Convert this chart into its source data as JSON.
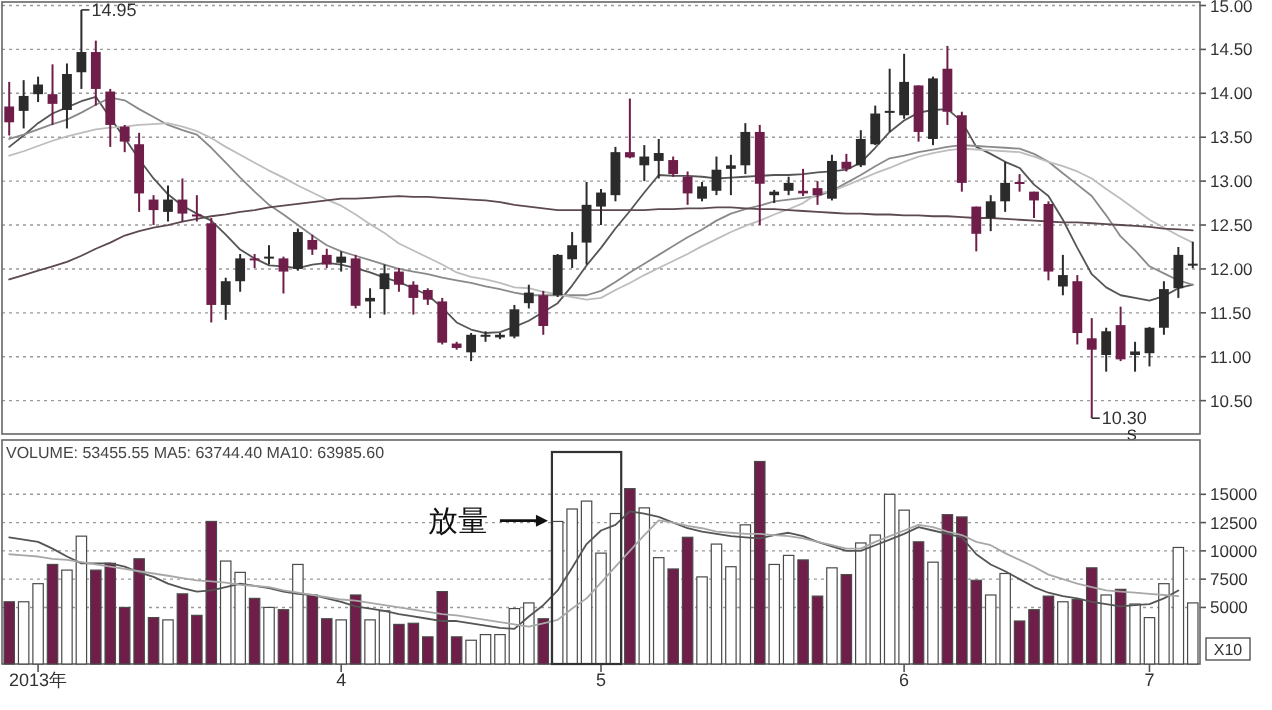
{
  "chart_data": [
    {
      "type": "candlestick",
      "categories": [
        null,
        null,
        null,
        null,
        null,
        null,
        null,
        null,
        null,
        null,
        null,
        null,
        null,
        null,
        null,
        null,
        null,
        null,
        null,
        null,
        null,
        null,
        null,
        null,
        null,
        null,
        null,
        null,
        null,
        null,
        null,
        null,
        null,
        null,
        null,
        null,
        null,
        null,
        null,
        null,
        null,
        null,
        null,
        null,
        null,
        null,
        null,
        null,
        null,
        null,
        null,
        null,
        null,
        null,
        null,
        null,
        null,
        null,
        null,
        null,
        null,
        null,
        null,
        null,
        null,
        null,
        null,
        null,
        null,
        null,
        null,
        null,
        null,
        null,
        null,
        null,
        null,
        null,
        null,
        null,
        null,
        null,
        null
      ],
      "ohlc": [
        [
          13.85,
          14.13,
          13.52,
          13.67
        ],
        [
          13.8,
          14.15,
          13.6,
          13.97
        ],
        [
          13.99,
          14.19,
          13.9,
          14.1
        ],
        [
          13.99,
          14.33,
          13.64,
          13.88
        ],
        [
          13.81,
          14.34,
          13.6,
          14.22
        ],
        [
          14.24,
          14.95,
          14.05,
          14.47
        ],
        [
          14.47,
          14.6,
          13.86,
          14.05
        ],
        [
          14.02,
          14.05,
          13.39,
          13.64
        ],
        [
          13.62,
          13.64,
          13.33,
          13.45
        ],
        [
          13.42,
          13.55,
          12.65,
          12.86
        ],
        [
          12.79,
          12.84,
          12.5,
          12.67
        ],
        [
          12.65,
          12.95,
          12.54,
          12.79
        ],
        [
          12.79,
          13.03,
          12.54,
          12.63
        ],
        [
          12.62,
          12.84,
          12.54,
          12.6
        ],
        [
          12.52,
          12.58,
          11.39,
          11.59
        ],
        [
          11.59,
          11.9,
          11.42,
          11.86
        ],
        [
          11.86,
          12.17,
          11.74,
          12.12
        ],
        [
          12.12,
          12.17,
          12.01,
          12.1
        ],
        [
          12.13,
          12.27,
          12.05,
          12.14
        ],
        [
          12.12,
          12.14,
          11.72,
          11.97
        ],
        [
          12.0,
          12.46,
          11.98,
          12.42
        ],
        [
          12.33,
          12.39,
          12.16,
          12.22
        ],
        [
          12.16,
          12.23,
          12.01,
          12.05
        ],
        [
          12.07,
          12.2,
          11.97,
          12.14
        ],
        [
          12.12,
          12.16,
          11.55,
          11.58
        ],
        [
          11.63,
          11.78,
          11.44,
          11.67
        ],
        [
          11.77,
          12.05,
          11.48,
          11.95
        ],
        [
          11.97,
          12.01,
          11.74,
          11.82
        ],
        [
          11.82,
          11.86,
          11.48,
          11.67
        ],
        [
          11.76,
          11.78,
          11.59,
          11.65
        ],
        [
          11.63,
          11.67,
          11.14,
          11.16
        ],
        [
          11.15,
          11.17,
          11.08,
          11.1
        ],
        [
          11.05,
          11.27,
          10.95,
          11.25
        ],
        [
          11.24,
          11.29,
          11.17,
          11.25
        ],
        [
          11.22,
          11.27,
          11.2,
          11.25
        ],
        [
          11.23,
          11.59,
          11.21,
          11.54
        ],
        [
          11.61,
          11.82,
          11.55,
          11.73
        ],
        [
          11.7,
          11.75,
          11.25,
          11.35
        ],
        [
          11.7,
          12.17,
          11.68,
          12.16
        ],
        [
          12.11,
          12.42,
          12.01,
          12.27
        ],
        [
          12.3,
          12.99,
          12.05,
          12.73
        ],
        [
          12.71,
          12.91,
          12.5,
          12.87
        ],
        [
          12.84,
          13.39,
          12.77,
          13.33
        ],
        [
          13.33,
          13.94,
          13.26,
          13.27
        ],
        [
          13.18,
          13.41,
          13.0,
          13.28
        ],
        [
          13.23,
          13.48,
          13.03,
          13.32
        ],
        [
          13.24,
          13.28,
          13.05,
          13.08
        ],
        [
          13.05,
          13.11,
          12.73,
          12.86
        ],
        [
          12.8,
          12.99,
          12.77,
          12.94
        ],
        [
          12.89,
          13.28,
          12.84,
          13.13
        ],
        [
          13.14,
          13.3,
          12.84,
          13.18
        ],
        [
          13.18,
          13.66,
          13.08,
          13.56
        ],
        [
          13.56,
          13.64,
          12.5,
          12.97
        ],
        [
          12.84,
          12.9,
          12.75,
          12.88
        ],
        [
          12.89,
          13.05,
          12.84,
          12.98
        ],
        [
          12.89,
          13.14,
          12.83,
          12.86
        ],
        [
          12.92,
          13.0,
          12.73,
          12.84
        ],
        [
          12.8,
          13.3,
          12.78,
          13.23
        ],
        [
          13.22,
          13.31,
          13.11,
          13.14
        ],
        [
          13.18,
          13.58,
          13.16,
          13.48
        ],
        [
          13.42,
          13.86,
          13.41,
          13.77
        ],
        [
          13.79,
          14.28,
          13.56,
          13.8
        ],
        [
          13.75,
          14.45,
          13.71,
          14.13
        ],
        [
          14.09,
          14.09,
          13.45,
          13.56
        ],
        [
          13.48,
          14.19,
          13.41,
          14.17
        ],
        [
          14.28,
          14.54,
          13.64,
          13.79
        ],
        [
          13.75,
          13.79,
          12.88,
          12.98
        ],
        [
          12.71,
          12.71,
          12.2,
          12.4
        ],
        [
          12.58,
          12.84,
          12.43,
          12.77
        ],
        [
          12.77,
          13.22,
          12.65,
          12.98
        ],
        [
          12.99,
          13.08,
          12.88,
          12.97
        ],
        [
          12.88,
          12.88,
          12.58,
          12.78
        ],
        [
          12.74,
          12.77,
          11.87,
          11.97
        ],
        [
          11.8,
          12.16,
          11.7,
          11.93
        ],
        [
          11.86,
          11.93,
          11.14,
          11.27
        ],
        [
          11.21,
          11.44,
          10.3,
          11.08
        ],
        [
          11.02,
          11.33,
          10.83,
          11.29
        ],
        [
          11.36,
          11.57,
          10.95,
          10.97
        ],
        [
          11.02,
          11.17,
          10.83,
          11.06
        ],
        [
          11.04,
          11.34,
          10.89,
          11.33
        ],
        [
          11.33,
          11.86,
          11.25,
          11.77
        ],
        [
          11.78,
          12.25,
          11.67,
          12.16
        ],
        [
          12.04,
          12.31,
          12.01,
          12.06
        ]
      ],
      "colors": [
        "#6e1e48",
        "#2b2b2b",
        "#2b2b2b",
        "#6e1e48",
        "#2b2b2b",
        "#2b2b2b",
        "#6e1e48",
        "#6e1e48",
        "#6e1e48",
        "#6e1e48",
        "#6e1e48",
        "#2b2b2b",
        "#6e1e48",
        "#6e1e48",
        "#6e1e48",
        "#2b2b2b",
        "#2b2b2b",
        "#6e1e48",
        "#2b2b2b",
        "#6e1e48",
        "#2b2b2b",
        "#6e1e48",
        "#6e1e48",
        "#2b2b2b",
        "#6e1e48",
        "#2b2b2b",
        "#2b2b2b",
        "#6e1e48",
        "#6e1e48",
        "#6e1e48",
        "#6e1e48",
        "#6e1e48",
        "#2b2b2b",
        "#2b2b2b",
        "#2b2b2b",
        "#2b2b2b",
        "#2b2b2b",
        "#6e1e48",
        "#2b2b2b",
        "#2b2b2b",
        "#2b2b2b",
        "#2b2b2b",
        "#2b2b2b",
        "#6e1e48",
        "#2b2b2b",
        "#2b2b2b",
        "#6e1e48",
        "#6e1e48",
        "#2b2b2b",
        "#2b2b2b",
        "#2b2b2b",
        "#2b2b2b",
        "#6e1e48",
        "#2b2b2b",
        "#2b2b2b",
        "#6e1e48",
        "#6e1e48",
        "#2b2b2b",
        "#6e1e48",
        "#2b2b2b",
        "#2b2b2b",
        "#2b2b2b",
        "#2b2b2b",
        "#6e1e48",
        "#2b2b2b",
        "#6e1e48",
        "#6e1e48",
        "#6e1e48",
        "#2b2b2b",
        "#2b2b2b",
        "#6e1e48",
        "#6e1e48",
        "#6e1e48",
        "#2b2b2b",
        "#6e1e48",
        "#6e1e48",
        "#2b2b2b",
        "#6e1e48",
        "#2b2b2b",
        "#2b2b2b",
        "#2b2b2b",
        "#2b2b2b",
        "#2b2b2b"
      ],
      "series": [
        {
          "type": "line",
          "color": "#555555",
          "values": [
            13.39,
            13.52,
            13.66,
            13.77,
            13.84,
            13.91,
            13.96,
            13.72,
            13.49,
            13.25,
            13.03,
            12.85,
            12.72,
            12.63,
            12.55,
            12.39,
            12.22,
            12.12,
            12.04,
            12.03,
            12.01,
            12.05,
            12.07,
            12.05,
            12.01,
            11.96,
            11.9,
            11.85,
            11.78,
            11.7,
            11.56,
            11.39,
            11.31,
            11.27,
            11.28,
            11.34,
            11.41,
            11.51,
            11.61,
            11.81,
            12.04,
            12.24,
            12.46,
            12.66,
            12.87,
            13.07,
            13.06,
            13.06,
            13.05,
            13.03,
            13.04,
            13.05,
            13.06,
            13.07,
            13.07,
            13.08,
            13.1,
            13.11,
            13.13,
            13.21,
            13.38,
            13.56,
            13.69,
            13.78,
            13.81,
            13.82,
            13.68,
            13.39,
            13.31,
            13.22,
            13.15,
            12.96,
            12.83,
            12.56,
            12.24,
            11.94,
            11.79,
            11.7,
            11.67,
            11.64,
            11.69,
            11.78,
            11.82
          ]
        },
        {
          "type": "line",
          "color": "#8a8a8a",
          "values": [
            13.48,
            13.53,
            13.59,
            13.65,
            13.7,
            13.78,
            13.87,
            13.95,
            13.92,
            13.82,
            13.73,
            13.64,
            13.58,
            13.53,
            13.38,
            13.21,
            13.04,
            12.88,
            12.73,
            12.62,
            12.5,
            12.38,
            12.27,
            12.2,
            12.15,
            12.1,
            12.05,
            12.0,
            11.97,
            11.94,
            11.9,
            11.87,
            11.84,
            11.8,
            11.77,
            11.73,
            11.7,
            11.7,
            11.7,
            11.7,
            11.7,
            11.75,
            11.85,
            11.96,
            12.06,
            12.16,
            12.26,
            12.36,
            12.45,
            12.55,
            12.63,
            12.68,
            12.72,
            12.77,
            12.79,
            12.81,
            12.83,
            12.89,
            12.98,
            13.07,
            13.17,
            13.26,
            13.29,
            13.33,
            13.36,
            13.39,
            13.41,
            13.4,
            13.39,
            13.38,
            13.37,
            13.31,
            13.22,
            13.09,
            12.96,
            12.83,
            12.61,
            12.37,
            12.21,
            12.03,
            11.95,
            11.87,
            11.82
          ]
        },
        {
          "type": "line",
          "color": "#bdbdbd",
          "values": [
            13.29,
            13.34,
            13.4,
            13.46,
            13.51,
            13.55,
            13.59,
            13.61,
            13.62,
            13.64,
            13.65,
            13.66,
            13.62,
            13.57,
            13.49,
            13.39,
            13.3,
            13.21,
            13.12,
            13.04,
            12.95,
            12.87,
            12.79,
            12.72,
            12.62,
            12.51,
            12.41,
            12.29,
            12.21,
            12.13,
            12.05,
            11.96,
            11.91,
            11.88,
            11.84,
            11.79,
            11.78,
            11.74,
            11.71,
            11.68,
            11.65,
            11.67,
            11.76,
            11.84,
            11.93,
            12.01,
            12.09,
            12.17,
            12.26,
            12.34,
            12.42,
            12.49,
            12.55,
            12.62,
            12.68,
            12.75,
            12.86,
            12.89,
            12.95,
            13.02,
            13.09,
            13.15,
            13.22,
            13.28,
            13.32,
            13.35,
            13.37,
            13.36,
            13.35,
            13.34,
            13.33,
            13.28,
            13.22,
            13.17,
            13.11,
            13.03,
            12.91,
            12.8,
            12.68,
            12.56,
            12.47,
            12.38,
            12.3
          ]
        },
        {
          "type": "line",
          "color": "#5c4a4f",
          "values": [
            11.88,
            11.93,
            11.98,
            12.03,
            12.08,
            12.15,
            12.23,
            12.3,
            12.38,
            12.43,
            12.47,
            12.5,
            12.54,
            12.57,
            12.6,
            12.62,
            12.65,
            12.67,
            12.7,
            12.72,
            12.74,
            12.76,
            12.78,
            12.8,
            12.8,
            12.81,
            12.82,
            12.83,
            12.82,
            12.82,
            12.81,
            12.8,
            12.79,
            12.78,
            12.76,
            12.73,
            12.71,
            12.69,
            12.67,
            12.67,
            12.67,
            12.67,
            12.67,
            12.67,
            12.67,
            12.68,
            12.68,
            12.69,
            12.69,
            12.7,
            12.7,
            12.69,
            12.68,
            12.68,
            12.67,
            12.66,
            12.65,
            12.64,
            12.63,
            12.63,
            12.62,
            12.62,
            12.61,
            12.61,
            12.6,
            12.6,
            12.59,
            12.58,
            12.58,
            12.57,
            12.56,
            12.55,
            12.54,
            12.53,
            12.53,
            12.52,
            12.51,
            12.5,
            12.49,
            12.48,
            12.46,
            12.45,
            12.44
          ]
        }
      ],
      "ylim": [
        10.12,
        15.04
      ],
      "yticks": [
        {
          "value": 10.5,
          "label": "10.50"
        },
        {
          "value": 11,
          "label": "11.00"
        },
        {
          "value": 11.5,
          "label": "11.50"
        },
        {
          "value": 12,
          "label": "12.00"
        },
        {
          "value": 12.5,
          "label": "12.50"
        },
        {
          "value": 13,
          "label": "13.00"
        },
        {
          "value": 13.5,
          "label": "13.50"
        },
        {
          "value": 14,
          "label": "14.00"
        },
        {
          "value": 14.5,
          "label": "14.50"
        },
        {
          "value": 15,
          "label": "15.00"
        }
      ],
      "grid": "y",
      "tick_labels": "y",
      "annotations": [
        "14.95",
        "10.30",
        "S"
      ]
    },
    {
      "type": "bar",
      "title": "VOLUME: 53455.55 MA5: 63744.40 MA10: 63985.60",
      "ylabel": "X10",
      "series": [
        {
          "type": "bar",
          "values": [
            5500,
            5500,
            7100,
            8800,
            8300,
            11300,
            8300,
            8900,
            5000,
            9300,
            4100,
            3900,
            6200,
            4300,
            12600,
            9100,
            8100,
            5800,
            5000,
            4800,
            8800,
            6100,
            4000,
            3900,
            6100,
            3900,
            4700,
            3500,
            3600,
            2400,
            6400,
            2400,
            2100,
            2600,
            2600,
            4900,
            5400,
            4000,
            12600,
            13700,
            14400,
            9800,
            13300,
            15500,
            13800,
            9400,
            8400,
            11200,
            7700,
            10600,
            8600,
            12300,
            17900,
            8800,
            9600,
            9200,
            6000,
            8500,
            7900,
            10700,
            11400,
            15000,
            13600,
            10800,
            9000,
            13200,
            13000,
            7400,
            6100,
            8000,
            3800,
            4800,
            6000,
            5500,
            5700,
            8500,
            6100,
            6600,
            5300,
            4100,
            7100,
            10300,
            5400
          ],
          "colors": [
            "#6e1e48",
            "#ffffff",
            "#ffffff",
            "#6e1e48",
            "#ffffff",
            "#ffffff",
            "#6e1e48",
            "#6e1e48",
            "#6e1e48",
            "#6e1e48",
            "#6e1e48",
            "#ffffff",
            "#6e1e48",
            "#6e1e48",
            "#6e1e48",
            "#ffffff",
            "#ffffff",
            "#6e1e48",
            "#ffffff",
            "#6e1e48",
            "#ffffff",
            "#6e1e48",
            "#6e1e48",
            "#ffffff",
            "#6e1e48",
            "#ffffff",
            "#ffffff",
            "#6e1e48",
            "#6e1e48",
            "#6e1e48",
            "#6e1e48",
            "#6e1e48",
            "#ffffff",
            "#ffffff",
            "#ffffff",
            "#ffffff",
            "#ffffff",
            "#6e1e48",
            "#ffffff",
            "#ffffff",
            "#ffffff",
            "#ffffff",
            "#ffffff",
            "#6e1e48",
            "#ffffff",
            "#ffffff",
            "#6e1e48",
            "#6e1e48",
            "#ffffff",
            "#ffffff",
            "#ffffff",
            "#ffffff",
            "#6e1e48",
            "#ffffff",
            "#ffffff",
            "#6e1e48",
            "#6e1e48",
            "#ffffff",
            "#6e1e48",
            "#ffffff",
            "#ffffff",
            "#ffffff",
            "#ffffff",
            "#6e1e48",
            "#ffffff",
            "#6e1e48",
            "#6e1e48",
            "#6e1e48",
            "#ffffff",
            "#ffffff",
            "#6e1e48",
            "#6e1e48",
            "#6e1e48",
            "#ffffff",
            "#6e1e48",
            "#6e1e48",
            "#ffffff",
            "#6e1e48",
            "#ffffff",
            "#ffffff",
            "#ffffff",
            "#ffffff",
            "#ffffff"
          ]
        },
        {
          "type": "line",
          "color": "#555555",
          "values": [
            11200,
            11000,
            10800,
            10200,
            9500,
            8900,
            8900,
            8900,
            8600,
            8100,
            7700,
            7100,
            6700,
            6400,
            6500,
            6800,
            7100,
            6900,
            6700,
            6400,
            6200,
            6100,
            5800,
            5500,
            5100,
            4900,
            4700,
            4400,
            4200,
            4000,
            3800,
            3800,
            3600,
            3400,
            3200,
            3100,
            4200,
            5200,
            6500,
            8500,
            10600,
            11800,
            12300,
            13500,
            13300,
            13000,
            12500,
            12000,
            11700,
            11500,
            11300,
            11200,
            11100,
            11400,
            11600,
            11300,
            10800,
            10400,
            10000,
            10000,
            10500,
            11000,
            11500,
            12100,
            11800,
            11500,
            11200,
            9700,
            8800,
            8200,
            7500,
            6800,
            6300,
            6000,
            5800,
            5500,
            5300,
            5100,
            5200,
            5300,
            5800,
            6500,
            null
          ]
        },
        {
          "type": "line",
          "color": "#a8a8a8",
          "values": [
            9700,
            9600,
            9500,
            9300,
            9200,
            9000,
            8800,
            8600,
            8400,
            8200,
            8000,
            7800,
            7600,
            7400,
            7300,
            7200,
            7000,
            6900,
            6800,
            6500,
            6300,
            6100,
            5900,
            5700,
            5600,
            5400,
            5200,
            5000,
            4800,
            4600,
            4400,
            4300,
            4100,
            3900,
            3700,
            3500,
            3300,
            3600,
            3900,
            4900,
            5800,
            7200,
            8600,
            10000,
            11400,
            12700,
            12500,
            12200,
            12000,
            11700,
            11600,
            11500,
            11500,
            11400,
            11300,
            11100,
            10800,
            10500,
            10200,
            10200,
            10800,
            11300,
            11800,
            12300,
            12100,
            11700,
            11400,
            10800,
            10500,
            9800,
            9200,
            8600,
            7900,
            7500,
            7100,
            6800,
            6500,
            6400,
            6300,
            6200,
            6100,
            6000,
            null
          ]
        }
      ],
      "categories": [
        null,
        null,
        "2013年",
        null,
        null,
        null,
        null,
        null,
        null,
        null,
        null,
        null,
        null,
        null,
        null,
        null,
        null,
        null,
        null,
        null,
        null,
        null,
        null,
        "4",
        null,
        null,
        null,
        null,
        null,
        null,
        null,
        null,
        null,
        null,
        null,
        null,
        null,
        null,
        null,
        null,
        null,
        "5",
        null,
        null,
        null,
        null,
        null,
        null,
        null,
        null,
        null,
        null,
        null,
        null,
        null,
        null,
        null,
        null,
        null,
        null,
        null,
        null,
        "6",
        null,
        null,
        null,
        null,
        null,
        null,
        null,
        null,
        null,
        null,
        null,
        null,
        null,
        null,
        null,
        null,
        "7",
        null,
        null,
        null
      ],
      "ylim": [
        0,
        19800
      ],
      "yticks": [
        5000,
        7500,
        10000,
        12500,
        15000
      ],
      "grid": "y",
      "annotations": [
        "放量"
      ]
    }
  ]
}
